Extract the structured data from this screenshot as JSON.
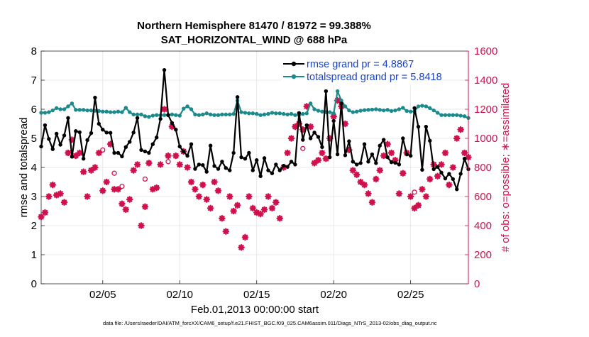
{
  "chart_data": {
    "type": "line",
    "title_line1": "Northern Hemisphere 81470 / 81972 = 99.388%",
    "title_line2": "SAT_HORIZONTAL_WIND @ 688 hPa",
    "xlabel": "Feb.01,2013 00:00:00 start",
    "ylabel_left": "rmse and totalspread",
    "ylabel_right": "# of obs: o=possible; ∗=assimilated",
    "x_range_days": [
      1,
      28.75
    ],
    "x_ticks": [
      5,
      10,
      15,
      20,
      25
    ],
    "x_tick_labels": [
      "02/05",
      "02/10",
      "02/15",
      "02/20",
      "02/25"
    ],
    "ylim_left": [
      0,
      8
    ],
    "yticks_left": [
      0,
      1,
      2,
      3,
      4,
      5,
      6,
      7,
      8
    ],
    "ylim_right": [
      0,
      1600
    ],
    "yticks_right": [
      0,
      200,
      400,
      600,
      800,
      1000,
      1200,
      1400,
      1600
    ],
    "grid": true,
    "colors": {
      "rmse": "#000000",
      "spread": "#1b8a8a",
      "obs": "#d0104c",
      "legend_text": "#1a44c8"
    },
    "series": [
      {
        "name": "rmse grand pr = 4.8867",
        "axis": "left",
        "values": [
          4.72,
          5.45,
          4.98,
          4.63,
          5.16,
          4.78,
          5.1,
          5.7,
          4.37,
          5.25,
          5.21,
          4.3,
          4.94,
          5.18,
          6.4,
          5.5,
          5.3,
          5.2,
          5.19,
          4.5,
          4.5,
          4.38,
          4.7,
          4.88,
          5.2,
          5.7,
          4.6,
          4.55,
          4.5,
          4.8,
          5.03,
          5.67,
          7.35,
          5.8,
          5.53,
          5.3,
          4.72,
          4.55,
          4.4,
          4.8,
          3.95,
          4.1,
          4.08,
          3.85,
          4.75,
          4.05,
          3.95,
          4.2,
          3.98,
          3.9,
          4.5,
          6.42,
          4.35,
          4.3,
          4.5,
          3.9,
          4.25,
          3.7,
          4.32,
          3.9,
          3.8,
          4.1,
          3.9,
          4.06,
          4.02,
          4.2,
          4.1,
          5.87,
          4.95,
          5.45,
          5.0,
          5.2,
          5.05,
          4.7,
          6.62,
          4.35,
          5.6,
          4.45,
          6.2,
          4.42,
          4.9,
          4.2,
          4.1,
          4.15,
          4.8,
          4.2,
          4.45,
          4.15,
          4.75,
          4.95,
          4.35,
          4.18,
          4.16,
          4.1,
          5.0,
          4.45,
          4.4,
          6.04,
          5.4,
          3.92,
          5.4,
          4.92,
          3.94,
          4.02,
          3.82,
          3.62,
          3.78,
          3.6,
          3.25,
          3.78,
          4.3,
          3.94
        ]
      },
      {
        "name": "totalspread grand pr = 5.8418",
        "axis": "left",
        "values": [
          5.88,
          5.88,
          5.9,
          5.96,
          6.04,
          6.0,
          6.0,
          6.1,
          6.2,
          5.98,
          5.98,
          5.98,
          5.96,
          5.96,
          5.95,
          5.94,
          5.92,
          5.92,
          5.9,
          5.9,
          5.92,
          5.9,
          6.05,
          5.9,
          5.82,
          5.82,
          5.82,
          5.76,
          5.74,
          5.78,
          5.8,
          5.79,
          5.8,
          5.8,
          5.82,
          5.8,
          5.78,
          6.02,
          6.1,
          6.0,
          5.82,
          5.8,
          5.82,
          5.86,
          5.82,
          5.8,
          5.8,
          5.82,
          5.82,
          5.82,
          5.84,
          6.3,
          5.9,
          5.88,
          5.86,
          5.86,
          5.84,
          5.8,
          5.82,
          5.84,
          5.88,
          5.86,
          5.86,
          5.84,
          5.82,
          5.84,
          5.8,
          5.8,
          5.84,
          5.86,
          6.2,
          6.0,
          5.95,
          5.92,
          5.9,
          5.9,
          5.86,
          6.62,
          6.3,
          6.1,
          5.96,
          5.9,
          5.92,
          5.95,
          5.97,
          5.98,
          5.99,
          6.0,
          5.98,
          5.96,
          5.98,
          5.94,
          5.96,
          6.0,
          6.05,
          5.94,
          5.92,
          5.93,
          6.1,
          6.12,
          6.1,
          6.04,
          5.96,
          5.88,
          5.8,
          5.8,
          5.8,
          5.8,
          5.8,
          5.78,
          5.76,
          5.7
        ]
      },
      {
        "name": "obs possible",
        "axis": "right",
        "marker": "o",
        "x": [
          5.0,
          5.75,
          6.25,
          7.75,
          9.25,
          18.0,
          25.25
        ],
        "values": [
          920,
          760,
          670,
          720,
          840,
          930,
          630
        ]
      },
      {
        "name": "obs assimilated",
        "axis": "right",
        "marker": "*",
        "values": [
          460,
          490,
          600,
          680,
          610,
          620,
          560,
          900,
          990,
          880,
          900,
          770,
          600,
          780,
          800,
          900,
          640,
          700,
          960,
          650,
          650,
          550,
          510,
          580,
          780,
          820,
          400,
          530,
          830,
          650,
          660,
          820,
          1200,
          880,
          1080,
          880,
          820,
          910,
          800,
          700,
          650,
          600,
          680,
          580,
          520,
          700,
          640,
          450,
          360,
          600,
          500,
          540,
          250,
          320,
          600,
          520,
          490,
          480,
          510,
          600,
          520,
          560,
          450,
          800,
          900,
          1000,
          1080,
          1100,
          1060,
          1220,
          1080,
          830,
          850,
          900,
          860,
          1000,
          1150,
          1260,
          1220,
          1100,
          920,
          780,
          750,
          700,
          680,
          620,
          560,
          720,
          780,
          880,
          960,
          900,
          850,
          620,
          760,
          900,
          600,
          520,
          540,
          650,
          600,
          720,
          820,
          740,
          820,
          900,
          680,
          800,
          1000,
          1060,
          900,
          870
        ]
      }
    ]
  }
}
